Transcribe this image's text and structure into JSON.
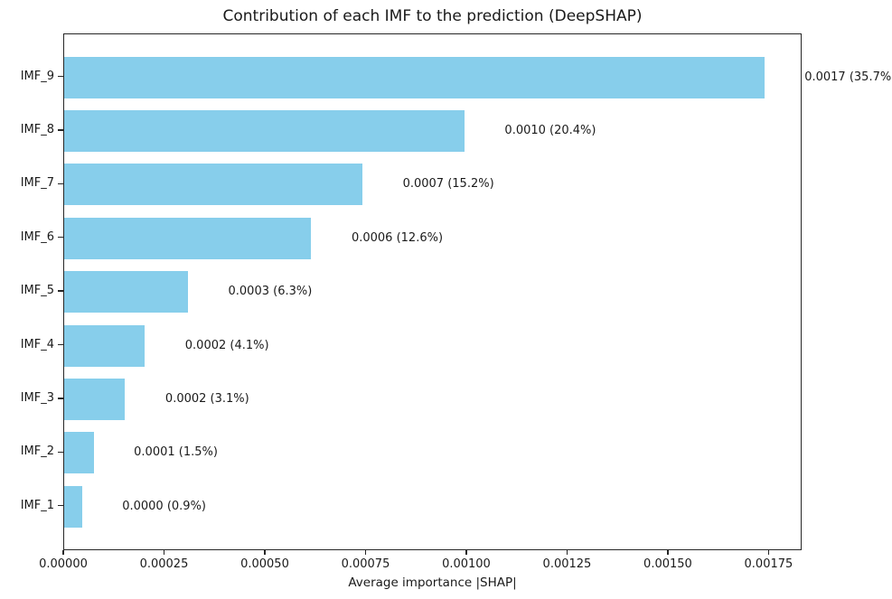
{
  "figure": {
    "background": "#ffffff",
    "text_color": "#1a1a1a",
    "spine_color": "#262626"
  },
  "chart_data": {
    "type": "bar",
    "orientation": "horizontal",
    "title": "Contribution of each IMF to the prediction (DeepSHAP)",
    "xlabel": "Average importance |SHAP|",
    "ylabel": "",
    "categories": [
      "IMF_9",
      "IMF_8",
      "IMF_7",
      "IMF_6",
      "IMF_5",
      "IMF_4",
      "IMF_3",
      "IMF_2",
      "IMF_1"
    ],
    "values": [
      0.001737,
      0.000993,
      0.00074,
      0.000613,
      0.000307,
      0.0002,
      0.000151,
      7.3e-05,
      4.4e-05
    ],
    "percentages": [
      35.7,
      20.4,
      15.2,
      12.6,
      6.3,
      4.1,
      3.1,
      1.5,
      0.9
    ],
    "bar_labels": [
      "0.0017 (35.7%)",
      "0.0010 (20.4%)",
      "0.0007 (15.2%)",
      "0.0006 (12.6%)",
      "0.0003 (6.3%)",
      "0.0002 (4.1%)",
      "0.0002 (3.1%)",
      "0.0001 (1.5%)",
      "0.0000 (0.9%)"
    ],
    "xlim": [
      0,
      0.001832
    ],
    "x_ticks": [
      0,
      0.00025,
      0.0005,
      0.00075,
      0.001,
      0.00125,
      0.0015,
      0.00175
    ],
    "x_tick_labels": [
      "0.00000",
      "0.00025",
      "0.00050",
      "0.00075",
      "0.00100",
      "0.00125",
      "0.00150",
      "0.00175"
    ],
    "bar_color": "#87ceeb",
    "annotation_x_offset": 0.0001,
    "grid": false,
    "legend": null
  }
}
